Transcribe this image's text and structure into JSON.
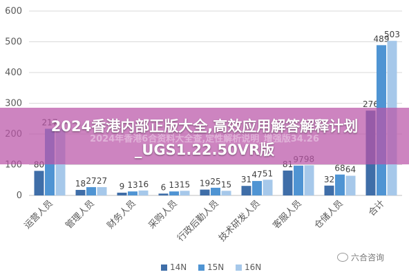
{
  "chart_data": {
    "type": "bar",
    "categories": [
      "运营人员",
      "管理人员",
      "财务人员",
      "采购人员",
      "行政后勤人员",
      "技术研发人员",
      "客服人员",
      "仓储人员",
      "合计"
    ],
    "series": [
      {
        "name": "14N",
        "color": "#3f6ea8",
        "values": [
          80,
          18,
          9,
          6,
          19,
          31,
          81,
          32,
          276
        ]
      },
      {
        "name": "15N",
        "color": "#4f94d3",
        "values": [
          217,
          27,
          13,
          13,
          25,
          47,
          97,
          68,
          489
        ]
      },
      {
        "name": "16N",
        "color": "#a6c8ea",
        "values": [
          217,
          27,
          16,
          15,
          15,
          51,
          98,
          64,
          503
        ]
      }
    ],
    "data_labels": [
      [
        "80",
        "217",
        ""
      ],
      [
        "18",
        "27",
        "27"
      ],
      [
        "9",
        "13",
        "16"
      ],
      [
        "6",
        "13",
        "15"
      ],
      [
        "19",
        "25",
        "15"
      ],
      [
        "31",
        "47",
        "51"
      ],
      [
        "81",
        "97",
        "98"
      ],
      [
        "32",
        "68",
        "64"
      ],
      [
        "276",
        "489",
        "503"
      ]
    ],
    "yticks": [
      "0",
      "100",
      "200",
      "300",
      "400",
      "500",
      "600"
    ],
    "ylim": [
      0,
      600
    ],
    "grid": true,
    "legend_position": "bottom",
    "title": "",
    "xlabel": "",
    "ylabel": ""
  },
  "overlay": {
    "title_line1": "2024香港内部正版大全,高效应用解答解释计划",
    "title_line2": "_UGS1.22.50VR版",
    "ghost_text": "2024年香港6合资料大全查,定性解析说明_增强版34.26"
  },
  "watermark": {
    "text": "六合咨询",
    "icon": "wechat-icon"
  }
}
